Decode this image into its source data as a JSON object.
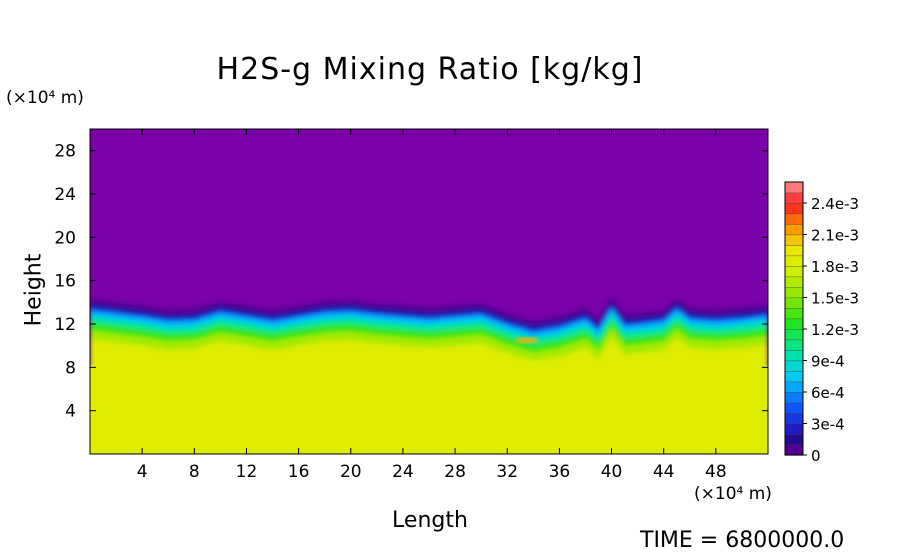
{
  "chart_data": {
    "type": "heatmap",
    "title": "H2S-g Mixing Ratio [kg/kg]",
    "xlabel": "Length",
    "ylabel": "Height",
    "x_unit": "(×10⁴ m)",
    "y_unit": "(×10⁴ m)",
    "xlim": [
      0,
      52
    ],
    "ylim": [
      0,
      30
    ],
    "x_ticks": [
      "4",
      "8",
      "12",
      "16",
      "20",
      "24",
      "28",
      "32",
      "36",
      "40",
      "44",
      "48"
    ],
    "y_ticks": [
      "4",
      "8",
      "12",
      "16",
      "20",
      "24",
      "28"
    ],
    "colorbar": {
      "min": 0,
      "max": 0.0026,
      "labels": [
        "0",
        "3e-4",
        "6e-4",
        "9e-4",
        "1.2e-3",
        "1.5e-3",
        "1.8e-3",
        "2.1e-3",
        "2.4e-3"
      ],
      "label_values": [
        0,
        0.0003,
        0.0006,
        0.0009,
        0.0012,
        0.0015,
        0.0018,
        0.0021,
        0.0024
      ]
    },
    "field": {
      "lower_layer_value": 0.00185,
      "upper_layer_value": 0,
      "interface_height_profile": {
        "x": [
          0,
          2,
          4,
          6,
          8,
          10,
          12,
          14,
          16,
          18,
          20,
          22,
          24,
          26,
          28,
          30,
          32,
          34,
          36,
          38,
          39,
          40,
          41,
          42,
          44,
          45,
          46,
          48,
          50,
          52
        ],
        "height": [
          13.8,
          13.5,
          13.2,
          12.8,
          12.9,
          13.6,
          13.2,
          12.8,
          13.2,
          13.6,
          13.7,
          13.4,
          13.2,
          13.0,
          13.2,
          13.4,
          12.5,
          11.8,
          12.2,
          13.0,
          12.0,
          14.0,
          12.4,
          12.5,
          12.8,
          13.9,
          13.0,
          12.8,
          13.0,
          13.3
        ]
      },
      "anomaly": {
        "x": 33.5,
        "height": 10.5,
        "value": 0.0021
      }
    },
    "grid": false
  },
  "footer": {
    "time": "TIME = 6800000.0"
  }
}
